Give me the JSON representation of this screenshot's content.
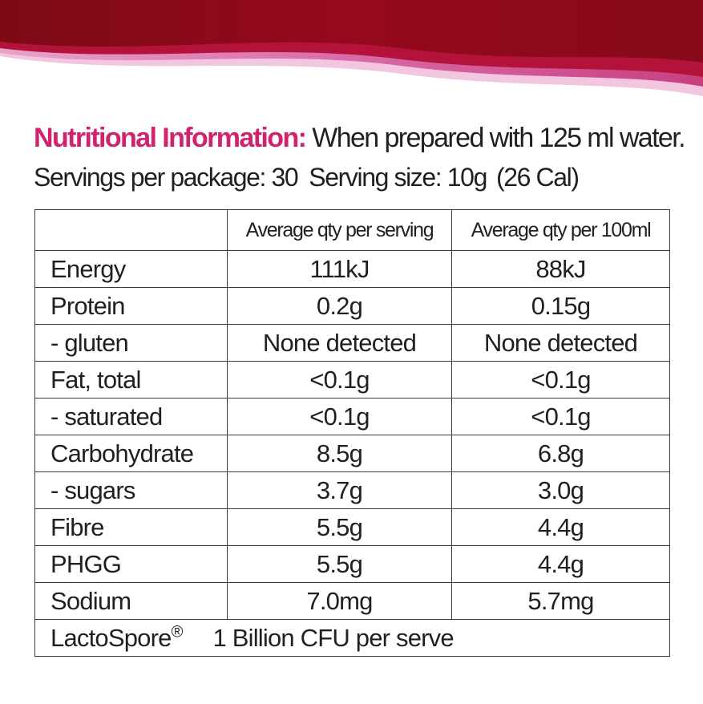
{
  "colors": {
    "banner_dark": "#8a0a18",
    "banner_mid": "#b0103a",
    "banner_pink": "#d8559c",
    "banner_light": "#e9a8cf",
    "heading_accent": "#d1226d",
    "text": "#231f20",
    "border": "#3a3a3a"
  },
  "heading": {
    "label": "Nutritional Information:",
    "note": "When prepared with 125 ml water."
  },
  "servings": {
    "per_package": "Servings per package: 30",
    "serving_size": "Serving size: 10g",
    "calories": "(26 Cal)"
  },
  "table": {
    "columns": [
      "",
      "Average qty per serving",
      "Average qty per 100ml"
    ],
    "rows": [
      {
        "name": "Energy",
        "per_serving": "111kJ",
        "per_100ml": "88kJ"
      },
      {
        "name": "Protein",
        "per_serving": "0.2g",
        "per_100ml": "0.15g"
      },
      {
        "name": "- gluten",
        "per_serving": "None detected",
        "per_100ml": "None detected"
      },
      {
        "name": "Fat, total",
        "per_serving": "<0.1g",
        "per_100ml": "<0.1g"
      },
      {
        "name": "- saturated",
        "per_serving": "<0.1g",
        "per_100ml": "<0.1g"
      },
      {
        "name": "Carbohydrate",
        "per_serving": "8.5g",
        "per_100ml": "6.8g"
      },
      {
        "name": "- sugars",
        "per_serving": "3.7g",
        "per_100ml": "3.0g"
      },
      {
        "name": "Fibre",
        "per_serving": "5.5g",
        "per_100ml": "4.4g"
      },
      {
        "name": "PHGG",
        "per_serving": "5.5g",
        "per_100ml": "4.4g"
      },
      {
        "name": "Sodium",
        "per_serving": "7.0mg",
        "per_100ml": "5.7mg"
      }
    ],
    "footer": {
      "name": "LactoSpore",
      "registered": "®",
      "value": "1 Billion CFU per serve"
    }
  }
}
